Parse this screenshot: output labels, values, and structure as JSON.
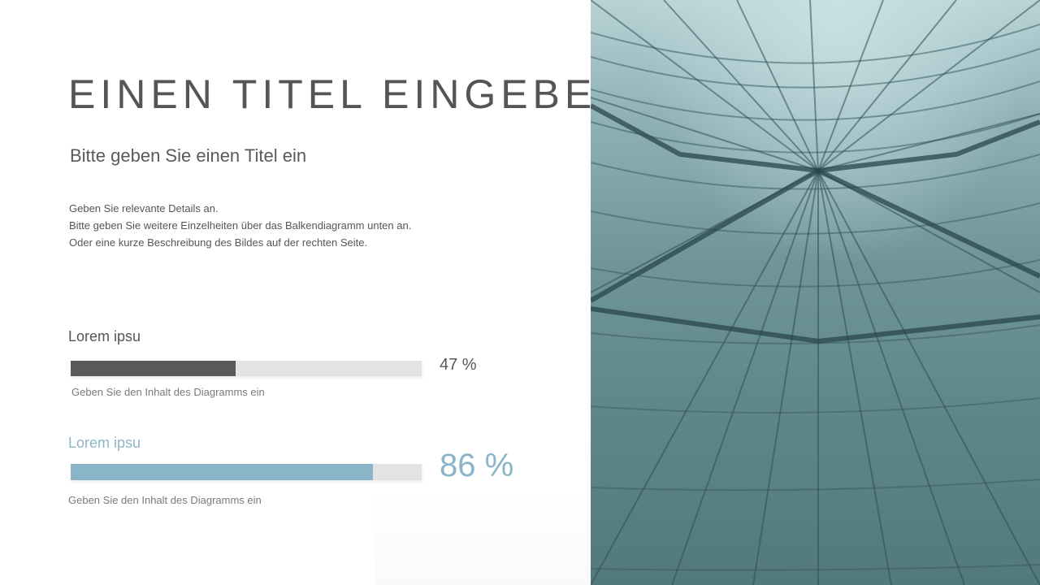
{
  "slide": {
    "title": "EINEN TITEL EINGEBEN",
    "subtitle": "Bitte geben Sie einen Titel ein",
    "description": [
      "Geben Sie relevante Details an.",
      "Bitte geben Sie weitere Einzelheiten über das Balkendiagramm unten an.",
      "Oder eine kurze Beschreibung des Bildes auf der rechten Seite."
    ]
  },
  "bars": [
    {
      "label": "Lorem ipsu",
      "value": 47,
      "value_text": "47 %",
      "caption": "Geben Sie den Inhalt des Diagramms ein",
      "color": "#595959"
    },
    {
      "label": "Lorem ipsu",
      "value": 86,
      "value_text": "86 %",
      "caption": "Geben Sie den Inhalt des Diagramms ein",
      "color": "#8ab5c8"
    }
  ],
  "image": {
    "icon": "glass-facade-photo"
  }
}
